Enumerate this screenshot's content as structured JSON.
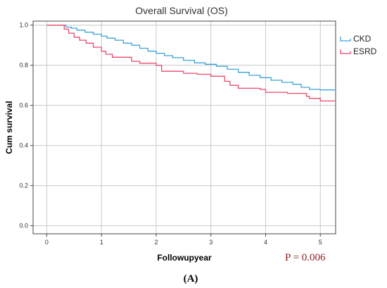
{
  "chart_data": {
    "type": "line",
    "title": "Overall Survival (OS)",
    "xlabel": "Followupyear",
    "ylabel": "Cum survival",
    "xlim": [
      -0.25,
      5.28
    ],
    "ylim": [
      -0.04,
      1.02
    ],
    "x_ticks": [
      0,
      1,
      2,
      3,
      4,
      5
    ],
    "y_ticks": [
      0.0,
      0.2,
      0.4,
      0.6,
      0.8,
      1.0
    ],
    "x_tick_labels": [
      "0",
      "1",
      "2",
      "3",
      "4",
      "5"
    ],
    "y_tick_labels": [
      "0.0",
      "0.2",
      "0.4",
      "0.6",
      "0.8",
      "1.0"
    ],
    "grid": true,
    "legend_position": "top-right",
    "series": [
      {
        "name": "CKD",
        "color": "#3ba3d8",
        "x": [
          0,
          0.28,
          0.35,
          0.45,
          0.55,
          0.7,
          0.85,
          1.0,
          1.1,
          1.25,
          1.4,
          1.55,
          1.7,
          1.85,
          2.0,
          2.15,
          2.3,
          2.5,
          2.7,
          2.9,
          3.1,
          3.3,
          3.5,
          3.7,
          3.9,
          4.1,
          4.3,
          4.5,
          4.65,
          4.8,
          5.0,
          5.15,
          5.28
        ],
        "y": [
          1.0,
          1.0,
          0.99,
          0.985,
          0.975,
          0.965,
          0.955,
          0.945,
          0.935,
          0.925,
          0.91,
          0.9,
          0.885,
          0.87,
          0.86,
          0.848,
          0.838,
          0.825,
          0.812,
          0.805,
          0.795,
          0.78,
          0.765,
          0.75,
          0.738,
          0.725,
          0.715,
          0.705,
          0.69,
          0.68,
          0.677,
          0.677,
          0.672
        ]
      },
      {
        "name": "ESRD",
        "color": "#e8496e",
        "x": [
          0,
          0.25,
          0.32,
          0.4,
          0.5,
          0.6,
          0.72,
          0.85,
          1.0,
          1.08,
          1.2,
          1.55,
          1.7,
          2.0,
          2.1,
          2.5,
          2.75,
          3.0,
          3.25,
          3.35,
          3.5,
          3.9,
          4.0,
          4.4,
          4.75,
          4.8,
          5.0,
          5.28
        ],
        "y": [
          1.0,
          1.0,
          0.98,
          0.96,
          0.94,
          0.925,
          0.91,
          0.89,
          0.87,
          0.855,
          0.84,
          0.82,
          0.81,
          0.8,
          0.77,
          0.76,
          0.755,
          0.745,
          0.72,
          0.7,
          0.685,
          0.68,
          0.665,
          0.66,
          0.645,
          0.635,
          0.622,
          0.622
        ]
      }
    ],
    "annotations": {
      "p_value": "P = 0.006",
      "panel_label": "(A)"
    }
  }
}
